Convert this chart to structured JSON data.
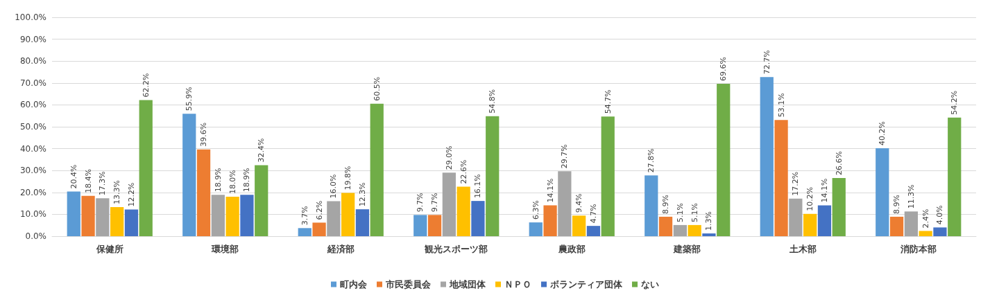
{
  "chart_data": {
    "type": "bar",
    "categories": [
      "保健所",
      "環境部",
      "経済部",
      "観光スポーツ部",
      "農政部",
      "建築部",
      "土木部",
      "消防本部"
    ],
    "series": [
      {
        "name": "町内会",
        "color": "#5b9bd5",
        "values": [
          20.4,
          55.9,
          3.7,
          9.7,
          6.3,
          27.8,
          72.7,
          40.2
        ],
        "value_labels": [
          "20.4%",
          "55.9%",
          "3.7%",
          "9.7%",
          "6.3%",
          "27.8%",
          "72.7%",
          "40.2%"
        ]
      },
      {
        "name": "市民委員会",
        "color": "#ed7d31",
        "values": [
          18.4,
          39.6,
          6.2,
          9.7,
          14.1,
          8.9,
          53.1,
          8.9
        ],
        "value_labels": [
          "18.4%",
          "39.6%",
          "6.2%",
          "9.7%",
          "14.1%",
          "8.9%",
          "53.1%",
          "8.9%"
        ]
      },
      {
        "name": "地域団体",
        "color": "#a5a5a5",
        "values": [
          17.3,
          18.9,
          16.0,
          29.0,
          29.7,
          5.1,
          17.2,
          11.3
        ],
        "value_labels": [
          "17.3%",
          "18.9%",
          "16.0%",
          "29.0%",
          "29.7%",
          "5.1%",
          "17.2%",
          "11.3%"
        ]
      },
      {
        "name": "ＮＰＯ",
        "color": "#ffc000",
        "values": [
          13.3,
          18.0,
          19.8,
          22.6,
          9.4,
          5.1,
          10.2,
          2.4
        ],
        "value_labels": [
          "13.3%",
          "18.0%",
          "19.8%",
          "22.6%",
          "9.4%",
          "5.1%",
          "10.2%",
          "2.4%"
        ]
      },
      {
        "name": "ボランティア団体",
        "color": "#4472c4",
        "values": [
          12.2,
          18.9,
          12.3,
          16.1,
          4.7,
          1.3,
          14.1,
          4.0
        ],
        "value_labels": [
          "12.2%",
          "18.9%",
          "12.3%",
          "16.1%",
          "4.7%",
          "1.3%",
          "14.1%",
          "4.0%"
        ]
      },
      {
        "name": "ない",
        "color": "#70ad47",
        "values": [
          62.2,
          32.4,
          60.5,
          54.8,
          54.7,
          69.6,
          26.6,
          54.2
        ],
        "value_labels": [
          "62.2%",
          "32.4%",
          "60.5%",
          "54.8%",
          "54.7%",
          "69.6%",
          "26.6%",
          "54.2%"
        ]
      }
    ],
    "ylim": [
      0,
      100
    ],
    "yticks": [
      {
        "value": 0,
        "label": "0.0%"
      },
      {
        "value": 10,
        "label": "10.0%"
      },
      {
        "value": 20,
        "label": "20.0%"
      },
      {
        "value": 30,
        "label": "30.0%"
      },
      {
        "value": 40,
        "label": "40.0%"
      },
      {
        "value": 50,
        "label": "50.0%"
      },
      {
        "value": 60,
        "label": "60.0%"
      },
      {
        "value": 70,
        "label": "70.0%"
      },
      {
        "value": 80,
        "label": "80.0%"
      },
      {
        "value": 90,
        "label": "90.0%"
      },
      {
        "value": 100,
        "label": "100.0%"
      }
    ],
    "grid": "y",
    "legend": "bottom"
  }
}
